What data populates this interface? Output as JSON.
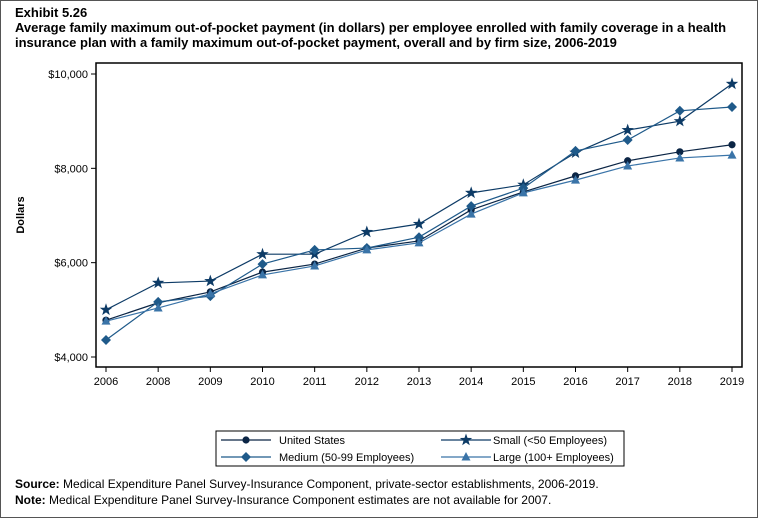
{
  "exhibit": "Exhibit 5.26",
  "title": "Average family maximum out-of-pocket payment (in dollars) per employee enrolled with family coverage in a health insurance plan with a family maximum out-of-pocket payment, overall and by firm size, 2006-2019",
  "source_label": "Source:",
  "source_text": "Medical Expenditure Panel Survey-Insurance Component, private-sector establishments, 2006-2019.",
  "note_label": "Note:",
  "note_text": "Medical Expenditure Panel Survey-Insurance Component estimates are not available for 2007.",
  "chart_data": {
    "type": "line",
    "ylabel": "Dollars",
    "xlabel": "",
    "ylim": [
      4000,
      10000
    ],
    "yticks": [
      4000,
      6000,
      8000,
      10000
    ],
    "ytick_labels": [
      "$4,000",
      "$6,000",
      "$8,000",
      "$10,000"
    ],
    "categories": [
      "2006",
      "2008",
      "2009",
      "2010",
      "2011",
      "2012",
      "2013",
      "2014",
      "2015",
      "2016",
      "2017",
      "2018",
      "2019"
    ],
    "legend_position": "bottom",
    "series": [
      {
        "name": "United States",
        "marker": "circle",
        "color": "#0b2545",
        "values": [
          4780,
          5150,
          5380,
          5800,
          5970,
          6310,
          6460,
          7120,
          7500,
          7840,
          8160,
          8350,
          8500
        ]
      },
      {
        "name": "Small (<50 Employees)",
        "marker": "star",
        "color": "#0d3b66",
        "values": [
          5000,
          5570,
          5610,
          6180,
          6180,
          6650,
          6820,
          7480,
          7650,
          8330,
          8810,
          9000,
          9790
        ]
      },
      {
        "name": "Medium (50-99 Employees)",
        "marker": "diamond",
        "color": "#1f5a8a",
        "values": [
          4360,
          5170,
          5290,
          5970,
          6270,
          6310,
          6540,
          7200,
          7580,
          8370,
          8600,
          9220,
          9300
        ]
      },
      {
        "name": "Large (100+ Employees)",
        "marker": "triangle",
        "color": "#3a74a8",
        "values": [
          4760,
          5040,
          5340,
          5740,
          5930,
          6270,
          6420,
          7030,
          7480,
          7750,
          8050,
          8220,
          8280
        ]
      }
    ]
  }
}
